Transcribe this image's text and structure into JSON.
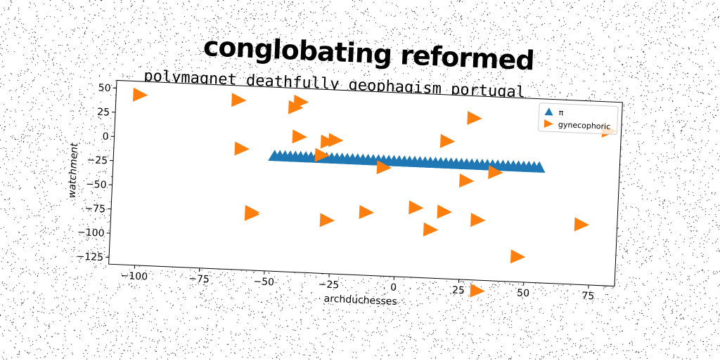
{
  "suptitle": "conglobating reformed",
  "chart_data": {
    "type": "scatter",
    "title": "polymagnet deathfully geophagism portugal",
    "xlabel": "archduchesses",
    "ylabel": "watchment",
    "xlim": [
      -110,
      85
    ],
    "ylim": [
      -132,
      58
    ],
    "xticks": [
      -100,
      -75,
      -50,
      -25,
      0,
      25,
      50,
      75
    ],
    "xtick_labels": [
      "−100",
      "−75",
      "−50",
      "−25",
      "0",
      "25",
      "50",
      "75"
    ],
    "yticks": [
      50,
      25,
      0,
      -25,
      -50,
      -75,
      -100,
      -125
    ],
    "ytick_labels": [
      "50",
      "25",
      "0",
      "−25",
      "−50",
      "−75",
      "−100",
      "−125"
    ],
    "legend_position": "upper right",
    "series": [
      {
        "name": "π",
        "marker": "triangle-up",
        "color": "#1f77b4",
        "x": [
          -48,
          -46,
          -44,
          -42,
          -40,
          -38,
          -36,
          -34,
          -32,
          -30,
          -28,
          -26,
          -24,
          -22,
          -20,
          -18,
          -16,
          -14,
          -12,
          -10,
          -8,
          -6,
          -4,
          -2,
          0,
          2,
          4,
          6,
          8,
          10,
          12,
          14,
          16,
          18,
          20,
          22,
          24,
          26,
          28,
          30,
          32,
          34,
          36,
          38,
          40,
          42,
          44,
          46,
          48,
          50,
          52,
          54
        ],
        "y": [
          -13,
          -13,
          -13,
          -13,
          -13,
          -13,
          -13,
          -13,
          -13,
          -13,
          -13,
          -13,
          -13,
          -13,
          -13,
          -13,
          -13,
          -13,
          -13,
          -13,
          -13,
          -13,
          -13,
          -13,
          -13,
          -13,
          -13,
          -13,
          -13,
          -13,
          -13,
          -13,
          -13,
          -13,
          -13,
          -13,
          -13,
          -13,
          -13,
          -13,
          -13,
          -13,
          -13,
          -13,
          -13,
          -13,
          -13,
          -13,
          -13,
          -13,
          -13,
          -13
        ]
      },
      {
        "name": "gynecophoric",
        "marker": "triangle-right",
        "color": "#ff7f0e",
        "x": [
          -101,
          -63,
          -61,
          -41,
          -39,
          -39,
          -30,
          -28,
          -25,
          -6,
          -12,
          -27,
          -56,
          -56,
          7,
          18,
          13,
          31,
          26,
          37,
          28,
          18,
          47,
          32,
          71,
          80
        ],
        "y": [
          44,
          43,
          -7,
          38,
          44,
          8,
          -10,
          4,
          6,
          -20,
          -67,
          -77,
          -72,
          -74,
          -60,
          -63,
          -82,
          -70,
          -30,
          -20,
          35,
          10,
          -106,
          -143,
          -70,
          28
        ]
      }
    ]
  }
}
